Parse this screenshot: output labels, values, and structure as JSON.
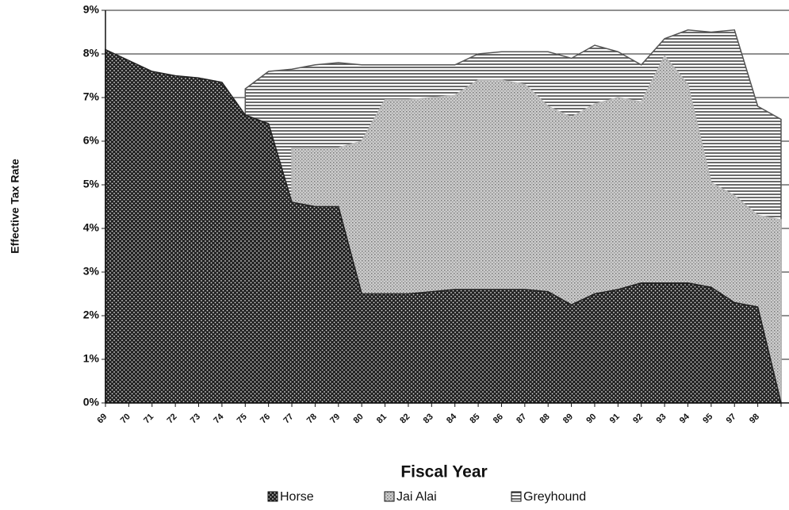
{
  "chart_data": {
    "type": "area",
    "x_label": "Fiscal Year",
    "y_label": "Effective Tax Rate",
    "categories": [
      "69",
      "70",
      "71",
      "72",
      "73",
      "74",
      "75",
      "76",
      "77",
      "78",
      "79",
      "80",
      "81",
      "82",
      "83",
      "84",
      "85",
      "86",
      "87",
      "88",
      "89",
      "90",
      "91",
      "92",
      "93",
      "94",
      "95",
      "97",
      "98",
      null
    ],
    "series": [
      {
        "name": "Greyhound",
        "color": "#555555",
        "values": [
          null,
          null,
          null,
          null,
          null,
          null,
          7.2,
          7.6,
          7.65,
          7.75,
          7.8,
          7.75,
          7.75,
          7.75,
          7.75,
          7.75,
          8.0,
          8.05,
          8.05,
          8.05,
          7.9,
          8.2,
          8.05,
          7.75,
          8.35,
          8.55,
          8.5,
          8.55,
          6.8,
          6.5
        ]
      },
      {
        "name": "Jai Alai",
        "color": "#b8b8b8",
        "values": [
          null,
          null,
          null,
          null,
          null,
          null,
          null,
          null,
          5.85,
          5.85,
          5.85,
          6.0,
          6.95,
          6.95,
          7.0,
          7.05,
          7.4,
          7.4,
          7.3,
          6.8,
          6.55,
          6.85,
          7.0,
          6.9,
          7.95,
          7.3,
          5.05,
          4.75,
          4.3,
          4.2
        ]
      },
      {
        "name": "Horse",
        "color": "#222222",
        "values": [
          8.1,
          7.85,
          7.6,
          7.5,
          7.45,
          7.35,
          6.6,
          6.4,
          4.6,
          4.5,
          4.5,
          2.5,
          2.5,
          2.5,
          2.55,
          2.6,
          2.6,
          2.6,
          2.6,
          2.55,
          2.25,
          2.5,
          2.6,
          2.75,
          2.75,
          2.75,
          2.65,
          2.3,
          2.2,
          0
        ]
      }
    ],
    "ylim": [
      0,
      9
    ],
    "yticks": [
      {
        "value": 0,
        "label": "0%"
      },
      {
        "value": 1,
        "label": "1%"
      },
      {
        "value": 2,
        "label": "2%"
      },
      {
        "value": 3,
        "label": "3%"
      },
      {
        "value": 4,
        "label": "4%"
      },
      {
        "value": 5,
        "label": "5%"
      },
      {
        "value": 6,
        "label": "6%"
      },
      {
        "value": 7,
        "label": "7%"
      },
      {
        "value": 8,
        "label": "8%"
      },
      {
        "value": 9,
        "label": "9%"
      }
    ],
    "grid": true,
    "legend": "bottom"
  }
}
